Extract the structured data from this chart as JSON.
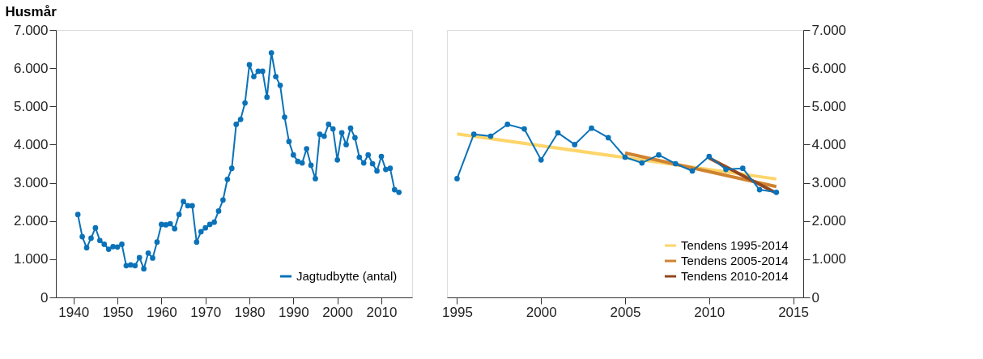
{
  "chart_data": [
    {
      "type": "line",
      "title": "Husmår",
      "marker": "circle",
      "grid": false,
      "legend": "bottom right",
      "x": [
        1941,
        1942,
        1943,
        1944,
        1945,
        1946,
        1947,
        1948,
        1949,
        1950,
        1951,
        1952,
        1953,
        1954,
        1955,
        1956,
        1957,
        1958,
        1959,
        1960,
        1961,
        1962,
        1963,
        1964,
        1965,
        1966,
        1967,
        1968,
        1969,
        1970,
        1971,
        1972,
        1973,
        1974,
        1975,
        1976,
        1977,
        1978,
        1979,
        1980,
        1981,
        1982,
        1983,
        1984,
        1985,
        1986,
        1987,
        1988,
        1989,
        1990,
        1991,
        1992,
        1993,
        1994,
        1995,
        1996,
        1997,
        1998,
        1999,
        2000,
        2001,
        2002,
        2003,
        2004,
        2005,
        2006,
        2007,
        2008,
        2009,
        2010,
        2011,
        2012,
        2013,
        2014
      ],
      "series": [
        {
          "name": "Jagtudbytte (antal)",
          "color": "#0a72b8",
          "values": [
            2170,
            1590,
            1300,
            1550,
            1820,
            1490,
            1390,
            1260,
            1330,
            1320,
            1390,
            830,
            850,
            830,
            1040,
            750,
            1160,
            1030,
            1450,
            1910,
            1900,
            1930,
            1800,
            2170,
            2510,
            2400,
            2400,
            1450,
            1720,
            1820,
            1910,
            1970,
            2260,
            2550,
            3090,
            3380,
            4530,
            4660,
            5090,
            6090,
            5780,
            5920,
            5920,
            5240,
            6400,
            5780,
            5550,
            4720,
            4080,
            3730,
            3560,
            3520,
            3890,
            3460,
            3110,
            4270,
            4220,
            4530,
            4410,
            3600,
            4310,
            4000,
            4430,
            4180,
            3670,
            3520,
            3730,
            3500,
            3310,
            3690,
            3350,
            3380,
            2820,
            2750
          ]
        }
      ],
      "xlim": [
        1936,
        2017
      ],
      "xticks": [
        1940,
        1950,
        1960,
        1970,
        1980,
        1990,
        2000,
        2010
      ],
      "ylim": [
        0,
        7000
      ],
      "yticks": [
        {
          "value": 0,
          "label": "0"
        },
        {
          "value": 1000,
          "label": "1.000"
        },
        {
          "value": 2000,
          "label": "2.000"
        },
        {
          "value": 3000,
          "label": "3.000"
        },
        {
          "value": 4000,
          "label": "4.000"
        },
        {
          "value": 5000,
          "label": "5.000"
        },
        {
          "value": 6000,
          "label": "6.000"
        },
        {
          "value": 7000,
          "label": "7.000"
        }
      ]
    },
    {
      "type": "line",
      "marker": "circle",
      "grid": false,
      "legend": "bottom right",
      "x": [
        1995,
        1996,
        1997,
        1998,
        1999,
        2000,
        2001,
        2002,
        2003,
        2004,
        2005,
        2006,
        2007,
        2008,
        2009,
        2010,
        2011,
        2012,
        2013,
        2014
      ],
      "series": [
        {
          "name": "Tendens 1995-2014",
          "color": "#fdd56a",
          "axis": "y2",
          "marker": "none",
          "x": [
            1995,
            2014
          ],
          "values": [
            4280,
            3100
          ]
        },
        {
          "name": "Tendens 2005-2014",
          "color": "#d08230",
          "axis": "y2",
          "marker": "none",
          "x": [
            2005,
            2014
          ],
          "values": [
            3780,
            2900
          ]
        },
        {
          "name": "Tendens 2010-2014",
          "color": "#93471f",
          "axis": "y2",
          "marker": "none",
          "x": [
            2010,
            2014
          ],
          "values": [
            3650,
            2730
          ]
        },
        {
          "color": "#0a72b8",
          "axis": "y2",
          "values": [
            3110,
            4270,
            4220,
            4530,
            4410,
            3600,
            4310,
            4000,
            4430,
            4180,
            3670,
            3520,
            3730,
            3500,
            3310,
            3690,
            3350,
            3380,
            2820,
            2750
          ]
        }
      ],
      "xlim": [
        1994.4,
        2015.6
      ],
      "xticks": [
        1995,
        2000,
        2005,
        2010,
        2015
      ],
      "y2lim": [
        0,
        7000
      ],
      "y2ticks": [
        {
          "value": 0,
          "label": "0"
        },
        {
          "value": 1000,
          "label": "1.000"
        },
        {
          "value": 2000,
          "label": "2.000"
        },
        {
          "value": 3000,
          "label": "3.000"
        },
        {
          "value": 4000,
          "label": "4.000"
        },
        {
          "value": 5000,
          "label": "5.000"
        },
        {
          "value": 6000,
          "label": "6.000"
        },
        {
          "value": 7000,
          "label": "7.000"
        }
      ]
    }
  ]
}
